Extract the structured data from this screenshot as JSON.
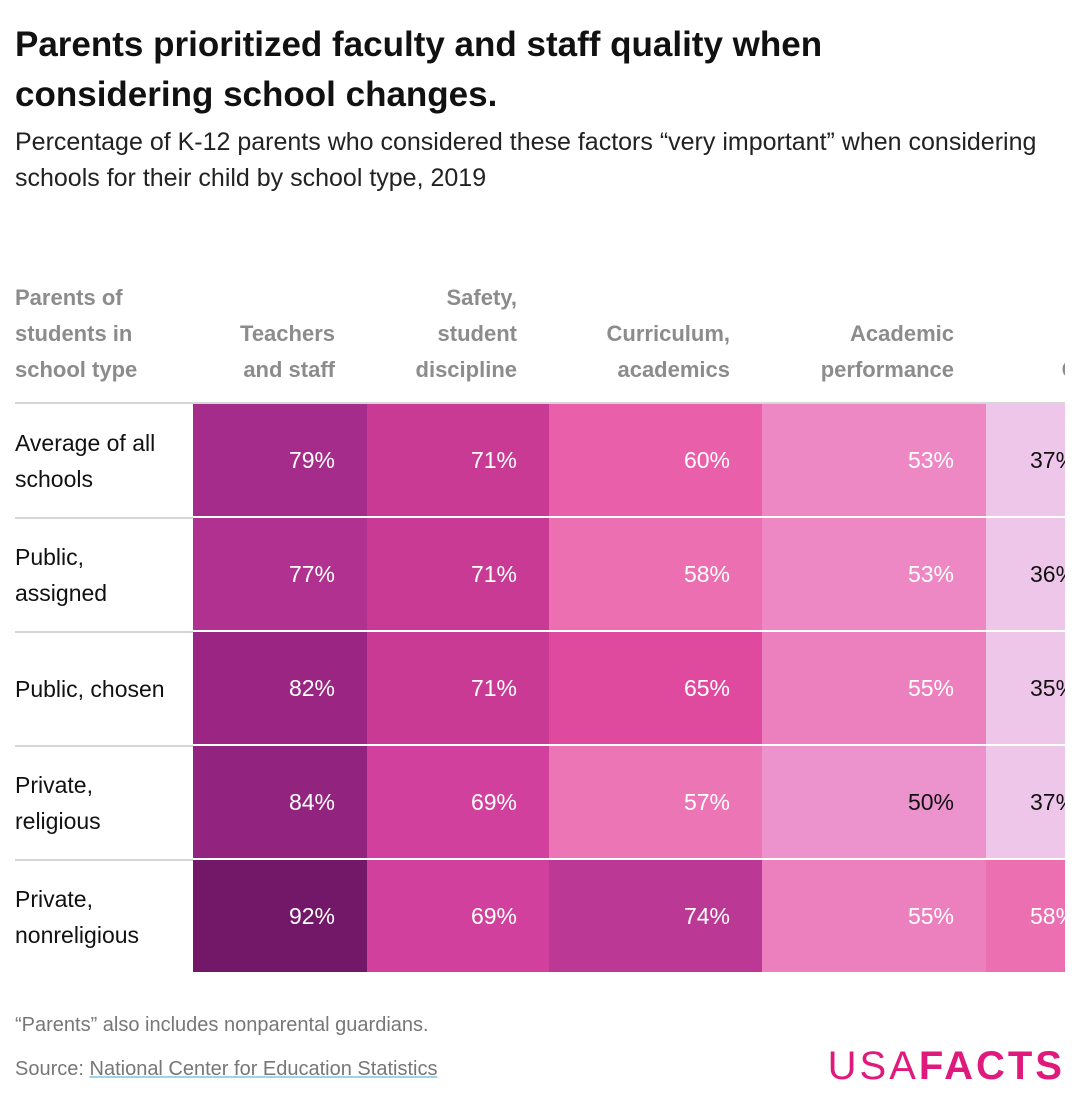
{
  "header": {
    "title": "Parents prioritized faculty and staff quality when considering school changes.",
    "subtitle": "Percentage of K-12 parents who considered these factors “very important” when considering schools for their child by school type, 2019"
  },
  "table": {
    "columns": [
      "Parents of students in school type",
      "Teachers and staff",
      "Safety, student discipline",
      "Curriculum, academics",
      "Academic performance",
      "Class size"
    ],
    "rows": [
      [
        "Average of all schools",
        "79%",
        "71%",
        "60%",
        "53%",
        "37%"
      ],
      [
        "Public, assigned",
        "77%",
        "71%",
        "58%",
        "53%",
        "36%"
      ],
      [
        "Public, chosen",
        "82%",
        "71%",
        "65%",
        "55%",
        "35%"
      ],
      [
        "Private, religious",
        "84%",
        "69%",
        "57%",
        "50%",
        "37%"
      ],
      [
        "Private, nonreligious",
        "92%",
        "69%",
        "74%",
        "55%",
        "58%"
      ]
    ]
  },
  "footer": {
    "note": "“Parents” also includes nonparental guardians.",
    "source_label": "Source:",
    "source_link": "National Center for Education Statistics",
    "logo": {
      "light": "USA",
      "bold": "FACTS"
    }
  }
}
